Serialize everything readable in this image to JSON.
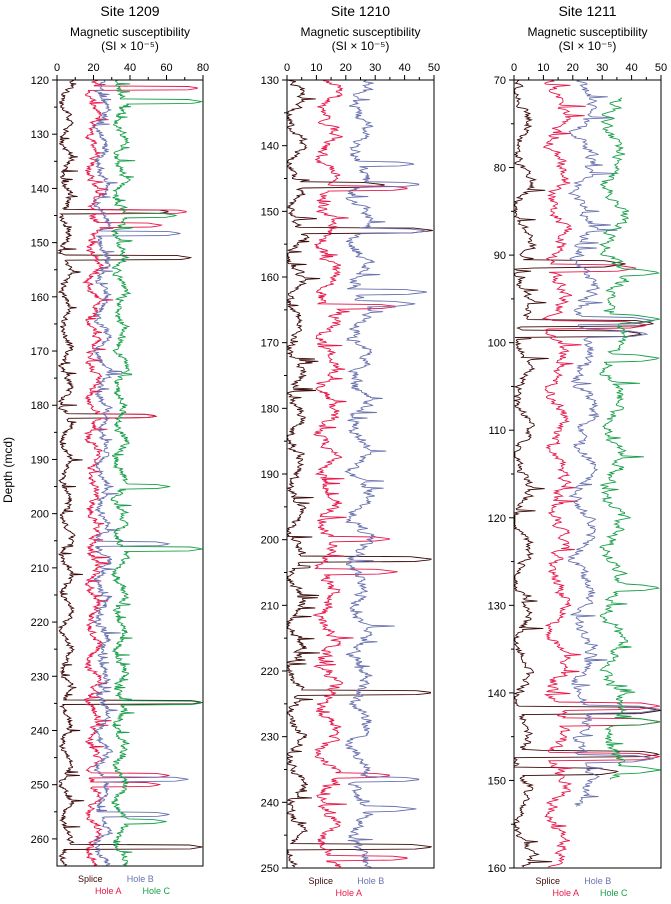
{
  "figure": {
    "ylabel": "Depth (mcd)"
  },
  "colors": {
    "Splice": "#3d0a0a",
    "Hole A": "#e8174a",
    "Hole B": "#6a72b0",
    "Hole C": "#18a04a"
  },
  "chart_data": [
    {
      "type": "line",
      "title": "Site 1209",
      "xlabel_line1": "Magnetic susceptibility",
      "xlabel_line2": "(SI × 10⁻⁵)",
      "ylabel": "Depth (mcd)",
      "xlim": [
        0,
        80
      ],
      "ylim": [
        120,
        265
      ],
      "y_inverted": true,
      "xticks": [
        0,
        20,
        40,
        60,
        80
      ],
      "yticks": [
        120,
        130,
        140,
        150,
        160,
        170,
        180,
        190,
        200,
        210,
        220,
        230,
        240,
        250,
        260
      ],
      "legend": {
        "row1": [
          "Splice",
          "Hole B"
        ],
        "row2": [
          "Hole A",
          "Hole C"
        ]
      },
      "series": [
        {
          "name": "Splice",
          "baseline": 5,
          "offset": 0,
          "depth_range": [
            120,
            265
          ],
          "spikes": [
            [
              144.3,
              62
            ],
            [
              152.8,
              74
            ],
            [
              182.0,
              55
            ],
            [
              234.8,
              80
            ],
            [
              261.5,
              80
            ]
          ]
        },
        {
          "name": "Hole A",
          "baseline": 20,
          "offset": 15,
          "depth_range": [
            120,
            265
          ],
          "spikes": [
            [
              121.5,
              78
            ],
            [
              146.8,
              58
            ],
            [
              144.3,
              72
            ],
            [
              182.0,
              55
            ],
            [
              248.3,
              62
            ],
            [
              250.0,
              57
            ]
          ]
        },
        {
          "name": "Hole B",
          "baseline": 25,
          "offset": 20,
          "depth_range": [
            120,
            265
          ],
          "spikes": [
            [
              148.3,
              68
            ],
            [
              205.6,
              62
            ],
            [
              249.0,
              72
            ],
            [
              255.5,
              62
            ]
          ]
        },
        {
          "name": "Hole C",
          "baseline": 35,
          "offset": 30,
          "depth_range": [
            120,
            265
          ],
          "spikes": [
            [
              124.0,
              80
            ],
            [
              145.0,
              66
            ],
            [
              195.0,
              62
            ],
            [
              206.5,
              80
            ],
            [
              234.9,
              80
            ],
            [
              256.8,
              60
            ]
          ]
        }
      ]
    },
    {
      "type": "line",
      "title": "Site 1210",
      "xlabel_line1": "Magnetic susceptibility",
      "xlabel_line2": "(SI × 10⁻⁵)",
      "ylabel": "",
      "xlim": [
        0,
        50
      ],
      "ylim": [
        130,
        250
      ],
      "y_inverted": true,
      "xticks": [
        0,
        10,
        20,
        30,
        40,
        50
      ],
      "yticks": [
        130,
        140,
        150,
        160,
        170,
        180,
        190,
        200,
        210,
        220,
        230,
        240,
        250
      ],
      "legend": {
        "row1": [
          "Splice",
          "Hole B"
        ],
        "row2": [
          "Hole A"
        ]
      },
      "series": [
        {
          "name": "Splice",
          "baseline": 3,
          "offset": 0,
          "depth_range": [
            130,
            250
          ],
          "spikes": [
            [
              146.0,
              34
            ],
            [
              152.9,
              50
            ],
            [
              203.0,
              50
            ],
            [
              223.3,
              50
            ],
            [
              246.8,
              50
            ]
          ]
        },
        {
          "name": "Hole A",
          "baseline": 14,
          "offset": 12,
          "depth_range": [
            130,
            250
          ],
          "spikes": [
            [
              146.5,
              42
            ],
            [
              164.5,
              38
            ],
            [
              199.9,
              36
            ],
            [
              204.9,
              38
            ],
            [
              235.9,
              36
            ],
            [
              248.5,
              42
            ]
          ]
        },
        {
          "name": "Hole B",
          "baseline": 25,
          "offset": 22,
          "depth_range": [
            130,
            250
          ],
          "spikes": [
            [
              142.8,
              44
            ],
            [
              145.9,
              46
            ],
            [
              153.0,
              48
            ],
            [
              162.3,
              48
            ],
            [
              164.1,
              44
            ],
            [
              236.5,
              46
            ],
            [
              241.0,
              44
            ]
          ]
        }
      ]
    },
    {
      "type": "line",
      "title": "Site 1211",
      "xlabel_line1": "Magnetic susceptibility",
      "xlabel_line2": "(SI × 10⁻⁵)",
      "ylabel": "",
      "xlim": [
        0,
        50
      ],
      "ylim": [
        70,
        160
      ],
      "y_inverted": true,
      "xticks": [
        0,
        10,
        20,
        30,
        40,
        50
      ],
      "yticks": [
        70,
        80,
        90,
        100,
        110,
        120,
        130,
        140,
        150,
        160
      ],
      "legend": {
        "row1": [
          "Splice",
          "Hole B"
        ],
        "row2": [
          "Hole A",
          "Hole C"
        ]
      },
      "series": [
        {
          "name": "Splice",
          "baseline": 3,
          "offset": 0,
          "depth_range": [
            70,
            160
          ],
          "spikes": [
            [
              91.0,
              38
            ],
            [
              97.8,
              48
            ],
            [
              99.0,
              44
            ],
            [
              142.0,
              50
            ],
            [
              147.0,
              50
            ],
            [
              149.0,
              36
            ]
          ]
        },
        {
          "name": "Hole A",
          "baseline": 15,
          "offset": 12,
          "depth_range": [
            70,
            160
          ],
          "spikes": [
            [
              91.5,
              42
            ],
            [
              98.0,
              46
            ],
            [
              141.5,
              50
            ],
            [
              143.3,
              50
            ],
            [
              147.3,
              50
            ]
          ]
        },
        {
          "name": "Hole B",
          "baseline": 24,
          "offset": 22,
          "depth_range": [
            70,
            153
          ],
          "spikes": [
            [
              97.5,
              48
            ],
            [
              99.0,
              46
            ],
            [
              141.9,
              50
            ],
            [
              147.5,
              48
            ]
          ]
        },
        {
          "name": "Hole C",
          "baseline": 34,
          "offset": 32,
          "depth_range": [
            72,
            150
          ],
          "spikes": [
            [
              92.0,
              50
            ],
            [
              97.3,
              50
            ],
            [
              101.8,
              50
            ],
            [
              128.0,
              50
            ],
            [
              143.3,
              50
            ],
            [
              148.8,
              50
            ]
          ]
        }
      ]
    }
  ]
}
